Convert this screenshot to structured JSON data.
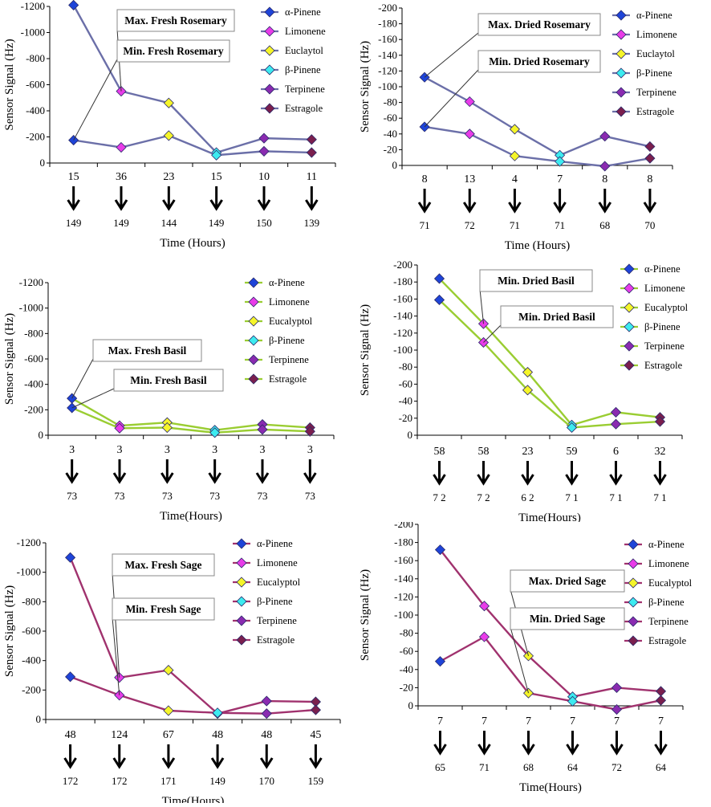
{
  "chart_data": [
    {
      "type": "line",
      "id": "fresh-rosemary",
      "ylabel": "Sensor Signal (Hz)",
      "xlabel": "Time (Hours)",
      "ylim": [
        0,
        -1200
      ],
      "yticks": [
        "-1200",
        "-1000",
        "-800",
        "-600",
        "-400",
        "-200",
        "0"
      ],
      "categories": [
        "15",
        "36",
        "23",
        "15",
        "10",
        "11"
      ],
      "times": [
        "149",
        "149",
        "144",
        "149",
        "150",
        "139"
      ],
      "line_color": "#6B6FA8",
      "series": [
        {
          "name": "Max. Fresh Rosemary",
          "values": [
            -1210,
            -550,
            -460,
            -80,
            -190,
            -180
          ]
        },
        {
          "name": "Min. Fresh Rosemary",
          "values": [
            -175,
            -120,
            -210,
            -60,
            -90,
            -80
          ]
        }
      ],
      "legend": [
        {
          "label": "α-Pinene",
          "color": "#1E44D8"
        },
        {
          "label": "Limonene",
          "color": "#E83CE8"
        },
        {
          "label": "Euclaytol",
          "color": "#F5F52A"
        },
        {
          "label": "β-Pinene",
          "color": "#3DEBF0"
        },
        {
          "label": "Terpinene",
          "color": "#8A2BB0"
        },
        {
          "label": "Estragole",
          "color": "#7A1F4E"
        }
      ],
      "annotations": [
        "Max. Fresh Rosemary",
        "Min. Fresh Rosemary"
      ]
    },
    {
      "type": "line",
      "id": "dried-rosemary",
      "ylabel": "Sensor Signal (Hz)",
      "xlabel": "Time (Hours)",
      "ylim": [
        0,
        -200
      ],
      "yticks": [
        "-200",
        "-180",
        "-160",
        "-140",
        "-120",
        "-100",
        "-80",
        "-60",
        "-40",
        "-20",
        "0"
      ],
      "categories": [
        "8",
        "13",
        "4",
        "7",
        "8",
        "8"
      ],
      "times": [
        "71",
        "72",
        "71",
        "71",
        "68",
        "70"
      ],
      "line_color": "#6B6FA8",
      "series": [
        {
          "name": "Max. Dried Rosemary",
          "values": [
            -112,
            -81,
            -46,
            -13,
            -37,
            -24
          ]
        },
        {
          "name": "Min. Dried Rosemary",
          "values": [
            -49,
            -40,
            -12,
            -5,
            1,
            -9
          ]
        }
      ],
      "legend": [
        {
          "label": "α-Pinene",
          "color": "#1E44D8"
        },
        {
          "label": "Limonene",
          "color": "#E83CE8"
        },
        {
          "label": "Euclaytol",
          "color": "#F5F52A"
        },
        {
          "label": "β-Pinene",
          "color": "#3DEBF0"
        },
        {
          "label": "Terpinene",
          "color": "#8A2BB0"
        },
        {
          "label": "Estragole",
          "color": "#7A1F4E"
        }
      ],
      "annotations": [
        "Max. Dried Rosemary",
        "Min. Dried Rosemary"
      ]
    },
    {
      "type": "line",
      "id": "fresh-basil",
      "ylabel": "Sensor Signal (Hz)",
      "xlabel": "Time(Hours)",
      "ylim": [
        0,
        -1200
      ],
      "yticks": [
        "-1200",
        "-1000",
        "-800",
        "-600",
        "-400",
        "-200",
        "0"
      ],
      "categories": [
        "3",
        "3",
        "3",
        "3",
        "3",
        "3"
      ],
      "times": [
        "73",
        "73",
        "73",
        "73",
        "73",
        "73"
      ],
      "line_color": "#9ACD32",
      "series": [
        {
          "name": "Max. Fresh Basil",
          "values": [
            -290,
            -75,
            -100,
            -40,
            -85,
            -60
          ]
        },
        {
          "name": "Min. Fresh Basil",
          "values": [
            -215,
            -55,
            -60,
            -20,
            -45,
            -30
          ]
        }
      ],
      "legend": [
        {
          "label": "α-Pinene",
          "color": "#1E44D8"
        },
        {
          "label": "Limonene",
          "color": "#E83CE8"
        },
        {
          "label": "Eucalyptol",
          "color": "#F5F52A"
        },
        {
          "label": "β-Pinene",
          "color": "#3DEBF0"
        },
        {
          "label": "Terpinene",
          "color": "#8A2BB0"
        },
        {
          "label": "Estragole",
          "color": "#7A1F4E"
        }
      ],
      "annotations": [
        "Max. Fresh Basil",
        "Min. Fresh Basil"
      ]
    },
    {
      "type": "line",
      "id": "dried-basil",
      "ylabel": "Sensor Signal (Hz)",
      "xlabel": "Time(Hours)",
      "ylim": [
        0,
        -200
      ],
      "yticks": [
        "-200",
        "-180",
        "-160",
        "-140",
        "-120",
        "-100",
        "-80",
        "-60",
        "-40",
        "-20",
        "0"
      ],
      "categories": [
        "58",
        "58",
        "23",
        "59",
        "6",
        "32"
      ],
      "times": [
        "7 2",
        "7 2",
        "6 2",
        "7 1",
        "7 1",
        "7 1"
      ],
      "line_color": "#9ACD32",
      "series": [
        {
          "name": "Min. Dried Basil",
          "values": [
            -184,
            -131,
            -74,
            -12,
            -27,
            -21
          ]
        },
        {
          "name": "Min. Dried Basil",
          "values": [
            -159,
            -109,
            -53,
            -9,
            -13,
            -16
          ]
        }
      ],
      "legend": [
        {
          "label": "α-Pinene",
          "color": "#1E44D8"
        },
        {
          "label": "Limonene",
          "color": "#E83CE8"
        },
        {
          "label": "Eucalyptol",
          "color": "#F5F52A"
        },
        {
          "label": "β-Pinene",
          "color": "#3DEBF0"
        },
        {
          "label": "Terpinene",
          "color": "#8A2BB0"
        },
        {
          "label": "Estragole",
          "color": "#7A1F4E"
        }
      ],
      "annotations": [
        "Min. Dried Basil",
        "Min. Dried Basil"
      ]
    },
    {
      "type": "line",
      "id": "fresh-sage",
      "ylabel": "Sensor Signal (Hz)",
      "xlabel": "Time(Hours)",
      "ylim": [
        0,
        -1200
      ],
      "yticks": [
        "-1200",
        "-1000",
        "-800",
        "-600",
        "-400",
        "-200",
        "0"
      ],
      "categories": [
        "48",
        "124",
        "67",
        "48",
        "48",
        "45"
      ],
      "times": [
        "172",
        "172",
        "171",
        "149",
        "170",
        "159"
      ],
      "line_color": "#A0326E",
      "series": [
        {
          "name": "Max. Fresh Sage",
          "values": [
            -1100,
            -285,
            -335,
            -40,
            -125,
            -120
          ]
        },
        {
          "name": "Min. Fresh Sage",
          "values": [
            -290,
            -165,
            -60,
            -45,
            -40,
            -65
          ]
        }
      ],
      "legend": [
        {
          "label": "α-Pinene",
          "color": "#1E44D8"
        },
        {
          "label": "Limonene",
          "color": "#E83CE8"
        },
        {
          "label": "Eucalyptol",
          "color": "#F5F52A"
        },
        {
          "label": "β-Pinene",
          "color": "#3DEBF0"
        },
        {
          "label": "Terpinene",
          "color": "#8A2BB0"
        },
        {
          "label": "Estragole",
          "color": "#7A1F4E"
        }
      ],
      "annotations": [
        "Max. Fresh Sage",
        "Min. Fresh Sage"
      ]
    },
    {
      "type": "line",
      "id": "dried-sage",
      "ylabel": "Sensor Signal (Hz)",
      "xlabel": "Time(Hours)",
      "ylim": [
        0,
        -200
      ],
      "yticks": [
        "-200",
        "-180",
        "-160",
        "-140",
        "-120",
        "-100",
        "-80",
        "-60",
        "-40",
        "-20",
        "0"
      ],
      "categories": [
        "7",
        "7",
        "7",
        "7",
        "7",
        "7"
      ],
      "times": [
        "65",
        "71",
        "68",
        "64",
        "72",
        "64"
      ],
      "line_color": "#A0326E",
      "series": [
        {
          "name": "Max. Dried Sage",
          "values": [
            -172,
            -110,
            -55,
            -10,
            -20,
            -16
          ]
        },
        {
          "name": "Min. Dried Sage",
          "values": [
            -49,
            -76,
            -14,
            -5,
            4,
            -6
          ]
        }
      ],
      "legend": [
        {
          "label": "α-Pinene",
          "color": "#1E44D8"
        },
        {
          "label": "Limonene",
          "color": "#E83CE8"
        },
        {
          "label": "Eucalyptol",
          "color": "#F5F52A"
        },
        {
          "label": "β-Pinene",
          "color": "#3DEBF0"
        },
        {
          "label": "Terpinene",
          "color": "#8A2BB0"
        },
        {
          "label": "Estragole",
          "color": "#7A1F4E"
        }
      ],
      "annotations": [
        "Max. Dried Sage",
        "Min. Dried Sage"
      ]
    }
  ]
}
